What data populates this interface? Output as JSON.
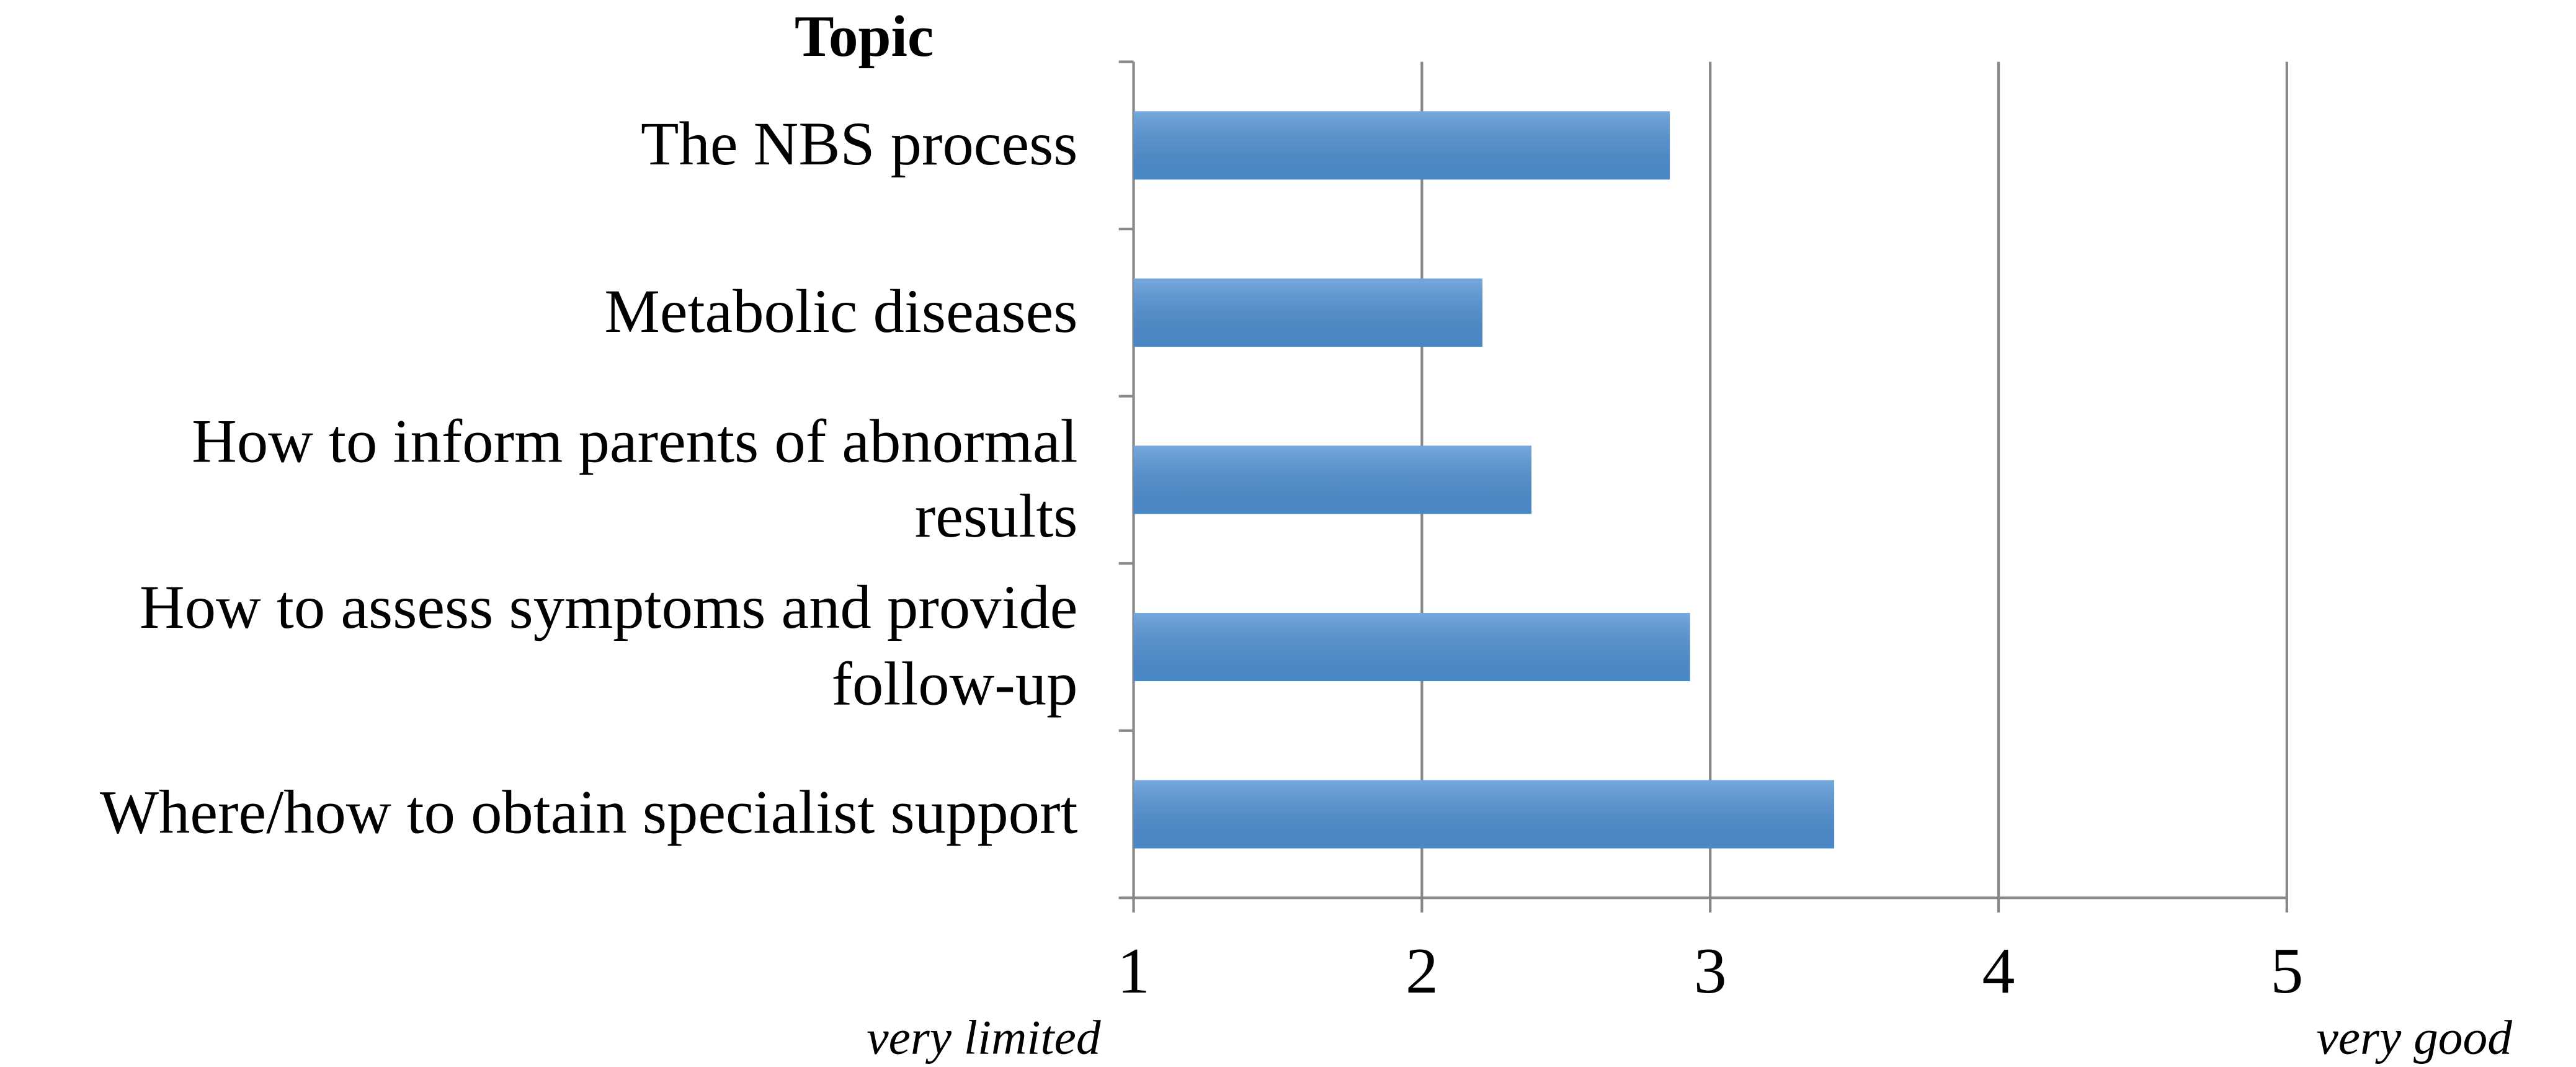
{
  "chart_data": {
    "type": "bar",
    "orientation": "horizontal",
    "ylabel": "Topic",
    "xlabel_left": "very limited",
    "xlabel_right": "very good",
    "categories": [
      "The NBS process",
      "Metabolic diseases",
      "How to inform parents of abnormal\nresults",
      "How to assess symptoms and provide\nfollow-up",
      "Where/how to obtain specialist support"
    ],
    "values": [
      2.86,
      2.21,
      2.38,
      2.93,
      3.43
    ],
    "color": "#4f90d3",
    "xlim": [
      1,
      5
    ],
    "xticks": [
      1,
      2,
      3,
      4,
      5
    ],
    "grid": true
  }
}
